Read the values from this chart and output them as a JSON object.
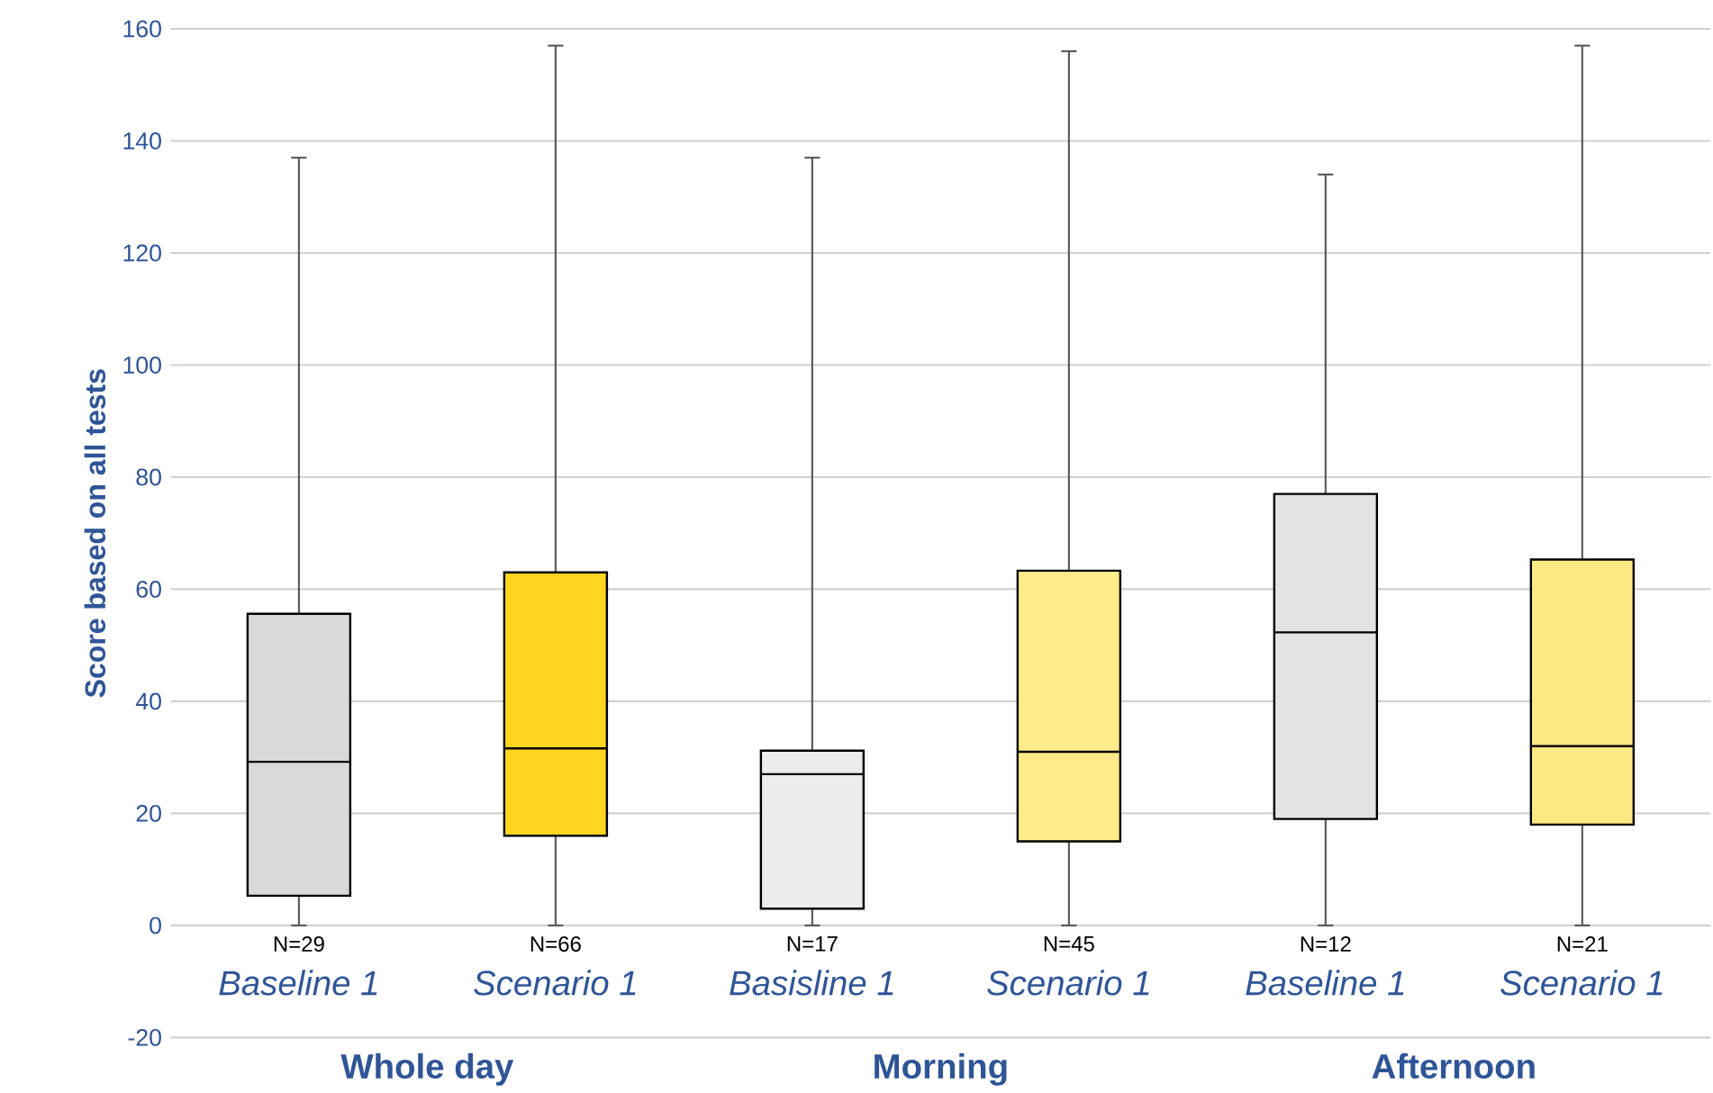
{
  "chart_data": {
    "type": "box",
    "ylabel": "Score based on all tests",
    "categories": [
      "Baseline 1",
      "Scenario 1",
      "Basisline 1",
      "Scenario 1",
      "Baseline 1",
      "Scenario 1"
    ],
    "boxes": [
      {
        "low": 0,
        "q1": 5.3,
        "median": 29.2,
        "q3": 55.6,
        "high": 137
      },
      {
        "low": 0,
        "q1": 16,
        "median": 31.6,
        "q3": 63,
        "high": 157
      },
      {
        "low": 0,
        "q1": 3,
        "median": 27,
        "q3": 31.2,
        "high": 137
      },
      {
        "low": 0,
        "q1": 15,
        "median": 31,
        "q3": 63.3,
        "high": 156
      },
      {
        "low": 0,
        "q1": 19,
        "median": 52.3,
        "q3": 77,
        "high": 134
      },
      {
        "low": 0,
        "q1": 18,
        "median": 32,
        "q3": 65.3,
        "high": 157
      }
    ],
    "colors": [
      "#d9d9d9",
      "#ffd520",
      "#ececec",
      "#ffeb8a",
      "#e3e3e3",
      "#ffe985"
    ],
    "annotations": [
      "N=29",
      "N=66",
      "N=17",
      "N=45",
      "N=12",
      "N=21",
      "Whole day",
      "Morning",
      "Afternoon"
    ],
    "ylim": [
      -20,
      160
    ],
    "yticks": [
      -20,
      0,
      20,
      40,
      60,
      80,
      100,
      120,
      140,
      160
    ],
    "grid": "y"
  }
}
